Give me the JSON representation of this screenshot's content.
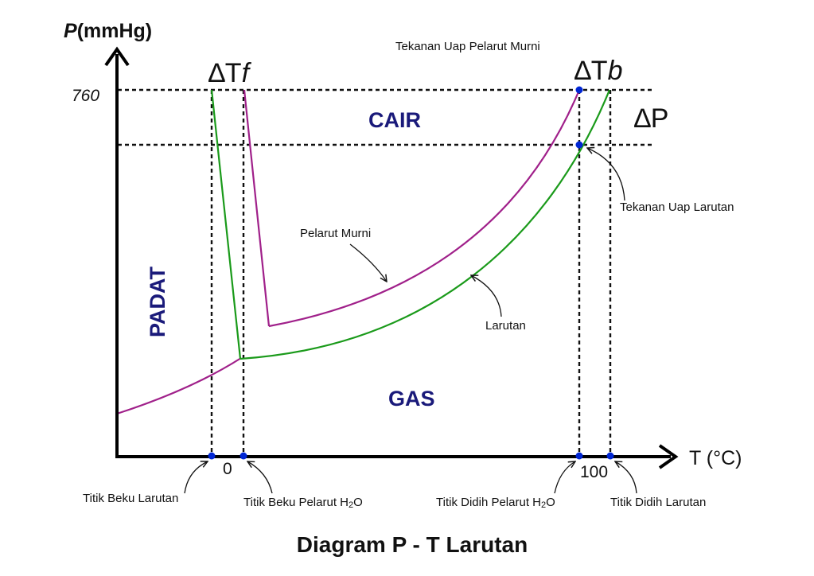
{
  "title": "Diagram P - T Larutan",
  "y_axis": {
    "symbol": "P",
    "unit": "(mmHg)",
    "tick_760": "760"
  },
  "x_axis": {
    "label": "T (°C)",
    "tick_0": "0",
    "tick_100": "100"
  },
  "regions": {
    "liquid": "CAIR",
    "solid": "PADAT",
    "gas": "GAS"
  },
  "deltas": {
    "freezing_symbol": "∆T",
    "freezing_sub": "f",
    "boiling_symbol": "∆T",
    "boiling_sub": "b",
    "pressure": "∆P"
  },
  "annotations": {
    "pure_vapor": "Tekanan Uap Pelarut Murni",
    "solution_vapor": "Tekanan Uap Larutan",
    "pure_curve": "Pelarut Murni",
    "solution_curve": "Larutan",
    "fp_solution": "Titik Beku Larutan",
    "fp_pure_prefix": "Titik Beku Pelarut H",
    "fp_pure_sub": "2",
    "fp_pure_suffix": "O",
    "bp_pure_prefix": "Titik Didih Pelarut H",
    "bp_pure_sub": "2",
    "bp_pure_suffix": "O",
    "bp_solution": "Titik Didih Larutan"
  },
  "colors": {
    "pure_solvent_curve": "#a0208a",
    "solution_curve": "#1a9a1a",
    "region_text": "#1a1a7a",
    "point": "#0026d4",
    "axis": "#000000"
  }
}
